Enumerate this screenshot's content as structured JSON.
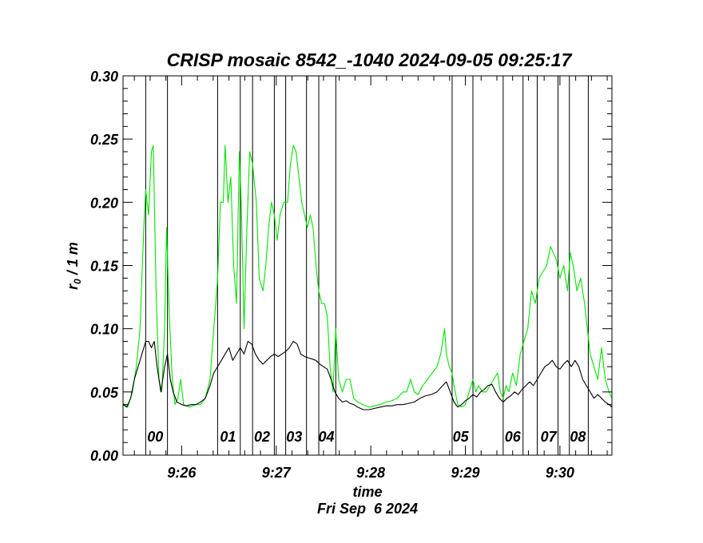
{
  "chart_data": {
    "type": "line",
    "title": "CRISP mosaic 8542_-1040 2024-09-05 09:25:17",
    "xlabel": "time",
    "xlabel_date": "Fri Sep  6 2024",
    "ylabel_main": "r",
    "ylabel_sub": "0",
    "ylabel_rest": " / 1 m",
    "xlim_min": [
      25.38,
      30.55
    ],
    "ylim": [
      0,
      0.3
    ],
    "yticks": [
      {
        "v": 0.0,
        "label": "0.00"
      },
      {
        "v": 0.05,
        "label": "0.05"
      },
      {
        "v": 0.1,
        "label": "0.10"
      },
      {
        "v": 0.15,
        "label": "0.15"
      },
      {
        "v": 0.2,
        "label": "0.20"
      },
      {
        "v": 0.25,
        "label": "0.25"
      },
      {
        "v": 0.3,
        "label": "0.30"
      }
    ],
    "xticks": [
      {
        "v": 26,
        "label": "9:26"
      },
      {
        "v": 27,
        "label": "9:27"
      },
      {
        "v": 28,
        "label": "9:28"
      },
      {
        "v": 29,
        "label": "9:29"
      },
      {
        "v": 30,
        "label": "9:30"
      }
    ],
    "scan_boundaries": [
      25.62,
      25.85,
      26.38,
      26.62,
      26.75,
      26.98,
      27.1,
      27.32,
      27.45,
      27.63,
      28.86,
      29.08,
      29.4,
      29.61,
      29.76,
      29.98,
      30.1,
      30.3
    ],
    "scans": [
      {
        "label": "00",
        "x": 25.72
      },
      {
        "label": "01",
        "x": 26.49
      },
      {
        "label": "02",
        "x": 26.85
      },
      {
        "label": "03",
        "x": 27.19
      },
      {
        "label": "04",
        "x": 27.53
      },
      {
        "label": "05",
        "x": 28.95
      },
      {
        "label": "06",
        "x": 29.5
      },
      {
        "label": "07",
        "x": 29.88
      },
      {
        "label": "08",
        "x": 30.19
      }
    ],
    "series": [
      {
        "color": "#00e600",
        "points": [
          [
            25.38,
            0.041
          ],
          [
            25.43,
            0.038
          ],
          [
            25.48,
            0.05
          ],
          [
            25.52,
            0.07
          ],
          [
            25.56,
            0.1
          ],
          [
            25.6,
            0.18
          ],
          [
            25.62,
            0.21
          ],
          [
            25.65,
            0.19
          ],
          [
            25.68,
            0.24
          ],
          [
            25.7,
            0.245
          ],
          [
            25.73,
            0.13
          ],
          [
            25.76,
            0.06
          ],
          [
            25.79,
            0.05
          ],
          [
            25.82,
            0.1
          ],
          [
            25.84,
            0.18
          ],
          [
            25.87,
            0.11
          ],
          [
            25.9,
            0.06
          ],
          [
            25.93,
            0.04
          ],
          [
            25.96,
            0.045
          ],
          [
            25.99,
            0.06
          ],
          [
            26.02,
            0.04
          ],
          [
            26.08,
            0.038
          ],
          [
            26.15,
            0.04
          ],
          [
            26.2,
            0.04
          ],
          [
            26.25,
            0.045
          ],
          [
            26.3,
            0.06
          ],
          [
            26.34,
            0.1
          ],
          [
            26.38,
            0.14
          ],
          [
            26.41,
            0.2
          ],
          [
            26.44,
            0.2
          ],
          [
            26.46,
            0.245
          ],
          [
            26.49,
            0.2
          ],
          [
            26.52,
            0.22
          ],
          [
            26.55,
            0.15
          ],
          [
            26.58,
            0.12
          ],
          [
            26.61,
            0.24
          ],
          [
            26.63,
            0.2
          ],
          [
            26.66,
            0.1
          ],
          [
            26.69,
            0.18
          ],
          [
            26.72,
            0.24
          ],
          [
            26.75,
            0.23
          ],
          [
            26.79,
            0.2
          ],
          [
            26.82,
            0.14
          ],
          [
            26.86,
            0.13
          ],
          [
            26.89,
            0.15
          ],
          [
            26.92,
            0.18
          ],
          [
            26.95,
            0.2
          ],
          [
            26.98,
            0.19
          ],
          [
            27.01,
            0.17
          ],
          [
            27.04,
            0.19
          ],
          [
            27.08,
            0.2
          ],
          [
            27.12,
            0.2
          ],
          [
            27.15,
            0.23
          ],
          [
            27.18,
            0.245
          ],
          [
            27.21,
            0.24
          ],
          [
            27.24,
            0.22
          ],
          [
            27.27,
            0.2
          ],
          [
            27.3,
            0.19
          ],
          [
            27.33,
            0.18
          ],
          [
            27.36,
            0.19
          ],
          [
            27.39,
            0.18
          ],
          [
            27.42,
            0.15
          ],
          [
            27.45,
            0.13
          ],
          [
            27.48,
            0.12
          ],
          [
            27.51,
            0.12
          ],
          [
            27.54,
            0.11
          ],
          [
            27.57,
            0.07
          ],
          [
            27.6,
            0.05
          ],
          [
            27.63,
            0.1
          ],
          [
            27.66,
            0.06
          ],
          [
            27.7,
            0.05
          ],
          [
            27.74,
            0.06
          ],
          [
            27.78,
            0.06
          ],
          [
            27.82,
            0.045
          ],
          [
            27.86,
            0.042
          ],
          [
            27.92,
            0.04
          ],
          [
            27.98,
            0.038
          ],
          [
            28.04,
            0.039
          ],
          [
            28.1,
            0.04
          ],
          [
            28.16,
            0.042
          ],
          [
            28.22,
            0.043
          ],
          [
            28.28,
            0.045
          ],
          [
            28.34,
            0.05
          ],
          [
            28.38,
            0.05
          ],
          [
            28.42,
            0.06
          ],
          [
            28.46,
            0.05
          ],
          [
            28.5,
            0.048
          ],
          [
            28.55,
            0.055
          ],
          [
            28.6,
            0.06
          ],
          [
            28.65,
            0.065
          ],
          [
            28.7,
            0.07
          ],
          [
            28.74,
            0.08
          ],
          [
            28.78,
            0.1
          ],
          [
            28.8,
            0.08
          ],
          [
            28.83,
            0.07
          ],
          [
            28.86,
            0.065
          ],
          [
            28.88,
            0.055
          ],
          [
            28.92,
            0.04
          ],
          [
            28.96,
            0.038
          ],
          [
            29.0,
            0.04
          ],
          [
            29.04,
            0.05
          ],
          [
            29.08,
            0.06
          ],
          [
            29.11,
            0.05
          ],
          [
            29.14,
            0.055
          ],
          [
            29.18,
            0.05
          ],
          [
            29.22,
            0.05
          ],
          [
            29.26,
            0.055
          ],
          [
            29.3,
            0.06
          ],
          [
            29.34,
            0.065
          ],
          [
            29.37,
            0.05
          ],
          [
            29.4,
            0.045
          ],
          [
            29.43,
            0.055
          ],
          [
            29.46,
            0.05
          ],
          [
            29.5,
            0.065
          ],
          [
            29.54,
            0.055
          ],
          [
            29.58,
            0.08
          ],
          [
            29.62,
            0.09
          ],
          [
            29.66,
            0.1
          ],
          [
            29.7,
            0.13
          ],
          [
            29.74,
            0.12
          ],
          [
            29.78,
            0.14
          ],
          [
            29.82,
            0.145
          ],
          [
            29.86,
            0.15
          ],
          [
            29.9,
            0.165
          ],
          [
            29.93,
            0.16
          ],
          [
            29.96,
            0.155
          ],
          [
            30.0,
            0.14
          ],
          [
            30.04,
            0.15
          ],
          [
            30.08,
            0.13
          ],
          [
            30.11,
            0.16
          ],
          [
            30.14,
            0.15
          ],
          [
            30.18,
            0.13
          ],
          [
            30.22,
            0.14
          ],
          [
            30.26,
            0.12
          ],
          [
            30.29,
            0.1
          ],
          [
            30.32,
            0.08
          ],
          [
            30.36,
            0.07
          ],
          [
            30.4,
            0.06
          ],
          [
            30.44,
            0.085
          ],
          [
            30.48,
            0.06
          ],
          [
            30.52,
            0.05
          ],
          [
            30.55,
            0.045
          ]
        ]
      },
      {
        "color": "#000000",
        "points": [
          [
            25.38,
            0.04
          ],
          [
            25.42,
            0.038
          ],
          [
            25.46,
            0.045
          ],
          [
            25.5,
            0.06
          ],
          [
            25.54,
            0.07
          ],
          [
            25.58,
            0.08
          ],
          [
            25.62,
            0.09
          ],
          [
            25.65,
            0.09
          ],
          [
            25.68,
            0.085
          ],
          [
            25.71,
            0.09
          ],
          [
            25.74,
            0.07
          ],
          [
            25.78,
            0.05
          ],
          [
            25.82,
            0.07
          ],
          [
            25.85,
            0.08
          ],
          [
            25.88,
            0.06
          ],
          [
            25.91,
            0.05
          ],
          [
            25.95,
            0.042
          ],
          [
            26.0,
            0.04
          ],
          [
            26.05,
            0.039
          ],
          [
            26.1,
            0.04
          ],
          [
            26.15,
            0.04
          ],
          [
            26.2,
            0.042
          ],
          [
            26.25,
            0.045
          ],
          [
            26.3,
            0.055
          ],
          [
            26.34,
            0.065
          ],
          [
            26.38,
            0.07
          ],
          [
            26.42,
            0.075
          ],
          [
            26.46,
            0.08
          ],
          [
            26.5,
            0.085
          ],
          [
            26.54,
            0.075
          ],
          [
            26.58,
            0.08
          ],
          [
            26.62,
            0.085
          ],
          [
            26.66,
            0.08
          ],
          [
            26.7,
            0.09
          ],
          [
            26.74,
            0.088
          ],
          [
            26.78,
            0.08
          ],
          [
            26.82,
            0.075
          ],
          [
            26.86,
            0.072
          ],
          [
            26.9,
            0.075
          ],
          [
            26.94,
            0.078
          ],
          [
            26.98,
            0.08
          ],
          [
            27.02,
            0.078
          ],
          [
            27.06,
            0.08
          ],
          [
            27.1,
            0.082
          ],
          [
            27.14,
            0.085
          ],
          [
            27.18,
            0.09
          ],
          [
            27.22,
            0.088
          ],
          [
            27.26,
            0.08
          ],
          [
            27.3,
            0.078
          ],
          [
            27.34,
            0.077
          ],
          [
            27.38,
            0.076
          ],
          [
            27.42,
            0.075
          ],
          [
            27.46,
            0.072
          ],
          [
            27.5,
            0.07
          ],
          [
            27.54,
            0.068
          ],
          [
            27.58,
            0.06
          ],
          [
            27.62,
            0.05
          ],
          [
            27.66,
            0.045
          ],
          [
            27.7,
            0.042
          ],
          [
            27.74,
            0.043
          ],
          [
            27.78,
            0.041
          ],
          [
            27.82,
            0.04
          ],
          [
            27.86,
            0.038
          ],
          [
            27.92,
            0.036
          ],
          [
            27.98,
            0.036
          ],
          [
            28.04,
            0.037
          ],
          [
            28.1,
            0.038
          ],
          [
            28.16,
            0.039
          ],
          [
            28.22,
            0.039
          ],
          [
            28.28,
            0.04
          ],
          [
            28.34,
            0.04
          ],
          [
            28.4,
            0.041
          ],
          [
            28.46,
            0.042
          ],
          [
            28.52,
            0.045
          ],
          [
            28.58,
            0.047
          ],
          [
            28.64,
            0.048
          ],
          [
            28.7,
            0.05
          ],
          [
            28.76,
            0.055
          ],
          [
            28.8,
            0.058
          ],
          [
            28.84,
            0.05
          ],
          [
            28.88,
            0.042
          ],
          [
            28.92,
            0.038
          ],
          [
            28.96,
            0.04
          ],
          [
            29.0,
            0.043
          ],
          [
            29.04,
            0.045
          ],
          [
            29.08,
            0.048
          ],
          [
            29.12,
            0.046
          ],
          [
            29.16,
            0.05
          ],
          [
            29.2,
            0.052
          ],
          [
            29.24,
            0.055
          ],
          [
            29.28,
            0.056
          ],
          [
            29.32,
            0.05
          ],
          [
            29.36,
            0.045
          ],
          [
            29.4,
            0.042
          ],
          [
            29.44,
            0.045
          ],
          [
            29.48,
            0.047
          ],
          [
            29.52,
            0.05
          ],
          [
            29.56,
            0.048
          ],
          [
            29.6,
            0.052
          ],
          [
            29.64,
            0.055
          ],
          [
            29.68,
            0.058
          ],
          [
            29.72,
            0.055
          ],
          [
            29.76,
            0.06
          ],
          [
            29.8,
            0.065
          ],
          [
            29.84,
            0.07
          ],
          [
            29.88,
            0.072
          ],
          [
            29.92,
            0.075
          ],
          [
            29.96,
            0.07
          ],
          [
            30.0,
            0.068
          ],
          [
            30.04,
            0.072
          ],
          [
            30.08,
            0.075
          ],
          [
            30.12,
            0.07
          ],
          [
            30.16,
            0.075
          ],
          [
            30.2,
            0.07
          ],
          [
            30.24,
            0.06
          ],
          [
            30.28,
            0.055
          ],
          [
            30.32,
            0.05
          ],
          [
            30.36,
            0.045
          ],
          [
            30.4,
            0.048
          ],
          [
            30.44,
            0.045
          ],
          [
            30.48,
            0.042
          ],
          [
            30.52,
            0.04
          ],
          [
            30.55,
            0.038
          ]
        ]
      }
    ]
  }
}
